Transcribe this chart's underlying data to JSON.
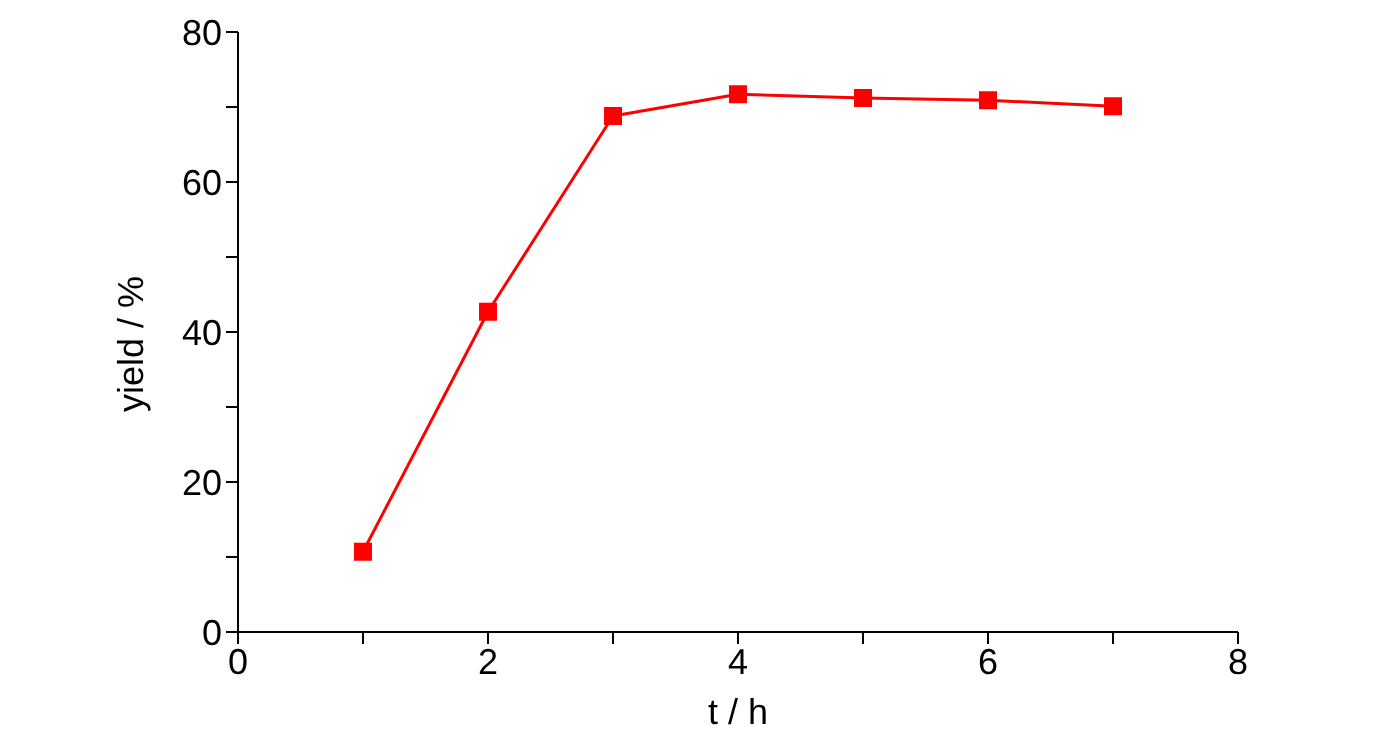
{
  "chart_data": {
    "type": "line",
    "xlabel": "t / h",
    "ylabel": "yield / %",
    "x": [
      1,
      2,
      3,
      4,
      5,
      6,
      7
    ],
    "series": [
      {
        "color": "#ff0000",
        "values": [
          10.7,
          42.7,
          68.8,
          71.7,
          71.2,
          70.9,
          70.1
        ]
      }
    ],
    "xlim": [
      0,
      8
    ],
    "xticks": [
      0,
      {
        "value": 1,
        "label": null
      },
      2,
      {
        "value": 3,
        "label": null
      },
      4,
      {
        "value": 5,
        "label": null
      },
      6,
      {
        "value": 7,
        "label": null
      },
      8
    ],
    "ylim": [
      0,
      80
    ],
    "yticks": [
      0,
      {
        "value": 10,
        "label": null
      },
      20,
      {
        "value": 30,
        "label": null
      },
      40,
      {
        "value": 50,
        "label": null
      },
      60,
      {
        "value": 70,
        "label": null
      },
      80
    ],
    "grid": false,
    "legend": false,
    "marker": "square",
    "line_style": "solid"
  }
}
